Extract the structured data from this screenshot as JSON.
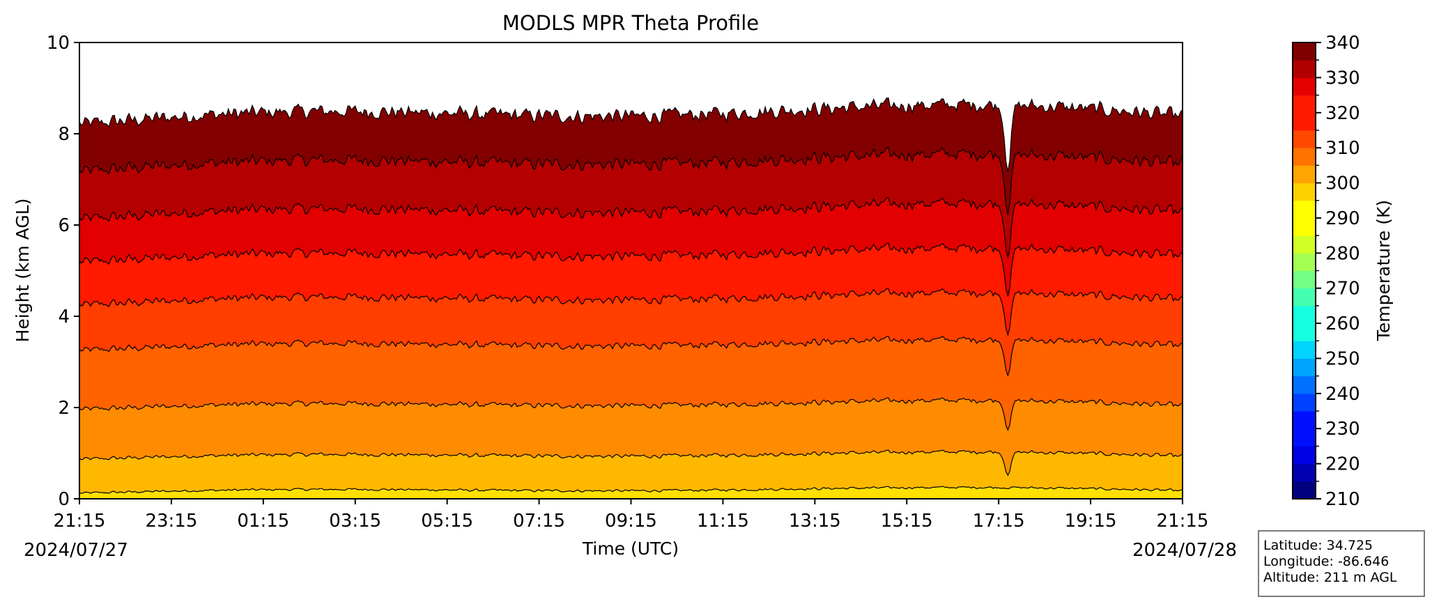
{
  "chart_data": {
    "type": "heatmap",
    "title": "MODLS MPR Theta Profile",
    "xlabel": "Time (UTC)",
    "ylabel": "Height (km AGL)",
    "x_ticks": [
      "21:15",
      "23:15",
      "01:15",
      "03:15",
      "05:15",
      "07:15",
      "09:15",
      "11:15",
      "13:15",
      "15:15",
      "17:15",
      "19:15",
      "21:15"
    ],
    "x_range_hours": [
      0,
      24
    ],
    "start_date": "2024/07/27",
    "end_date": "2024/07/28",
    "ylim": [
      0,
      10
    ],
    "y_ticks": [
      0,
      2,
      4,
      6,
      8,
      10
    ],
    "colorbar": {
      "label": "Temperature (K)",
      "range": [
        210,
        340
      ],
      "ticks": [
        210,
        220,
        230,
        240,
        250,
        260,
        270,
        280,
        290,
        300,
        310,
        320,
        330,
        340
      ],
      "colors": [
        "#00007f",
        "#0000b2",
        "#0000e5",
        "#0010ff",
        "#0040ff",
        "#0070ff",
        "#00a4ff",
        "#00d4ff",
        "#16ffe1",
        "#45ffb1",
        "#73ff83",
        "#a4ff53",
        "#d1ff26",
        "#ffff00",
        "#ffd000",
        "#ffa400",
        "#ff7300",
        "#ff4800",
        "#ff1a00",
        "#e50000",
        "#b20000",
        "#7f0000"
      ]
    },
    "layers": [
      {
        "theta_range": [
          305,
          310
        ],
        "top_height_km": 0.15,
        "color": "#ffe000"
      },
      {
        "theta_range": [
          310,
          315
        ],
        "top_height_km": 0.9,
        "color": "#ffb800"
      },
      {
        "theta_range": [
          315,
          320
        ],
        "top_height_km": 2.0,
        "color": "#ff8c00"
      },
      {
        "theta_range": [
          320,
          325
        ],
        "top_height_km": 3.3,
        "color": "#ff6300"
      },
      {
        "theta_range": [
          325,
          330
        ],
        "top_height_km": 4.3,
        "color": "#ff3e00"
      },
      {
        "theta_range": [
          330,
          335
        ],
        "top_height_km": 5.25,
        "color": "#ff1a00"
      },
      {
        "theta_range": [
          335,
          340
        ],
        "top_height_km": 6.2,
        "color": "#e20000"
      },
      {
        "theta_range": [
          340,
          345
        ],
        "top_height_km": 7.25,
        "color": "#b40000"
      },
      {
        "theta_range": [
          345,
          350
        ],
        "top_height_km": 8.3,
        "color": "#820000"
      }
    ],
    "feature": {
      "time_hours": 20.2,
      "description_depth_km": 4.5
    }
  },
  "info_box": {
    "latitude": "Latitude: 34.725",
    "longitude": "Longitude: -86.646",
    "altitude": "Altitude: 211 m AGL"
  }
}
